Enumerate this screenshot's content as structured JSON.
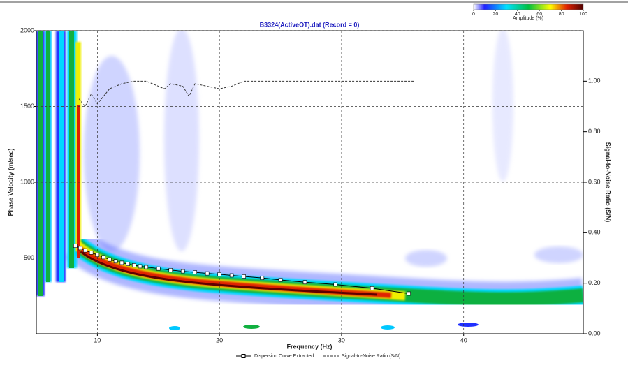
{
  "chart_data": {
    "type": "dispersion",
    "title": "B3324(ActiveOT).dat (Record = 0)",
    "x_label": "Frequency (Hz)",
    "y_label": "Phase Velocity (m/sec)",
    "y2_label": "Signal-to-Noise Ratio (S/N)",
    "xlim": [
      5,
      49.8
    ],
    "ylim": [
      0,
      2000
    ],
    "y2lim": [
      0,
      1.2
    ],
    "xticks": [
      10,
      20,
      30,
      40
    ],
    "yticks": [
      500,
      1000,
      1500,
      2000
    ],
    "y2ticks": [
      {
        "value": 0,
        "label": "0.00"
      },
      {
        "value": 0.2,
        "label": "0.20"
      },
      {
        "value": 0.4,
        "label": "0.40"
      },
      {
        "value": 0.6,
        "label": "0.60"
      },
      {
        "value": 0.8,
        "label": "0.80"
      },
      {
        "value": 1.0,
        "label": "1.00"
      }
    ],
    "grid": true,
    "colorbar": {
      "label": "Amplitude (%)",
      "ticks": [
        0,
        20,
        40,
        60,
        80,
        100
      ]
    },
    "series": [
      {
        "name": "Dispersion Curve Extracted",
        "color": "#000000",
        "x": [
          8.2,
          8.6,
          9,
          9.5,
          10,
          10.5,
          11,
          11.5,
          12,
          12.5,
          13,
          13.5,
          14,
          15,
          16,
          17,
          18,
          19,
          20,
          21,
          22,
          23.5,
          25,
          27,
          29.5,
          32.5,
          35.5
        ],
        "values": [
          580,
          565,
          550,
          535,
          520,
          505,
          490,
          478,
          468,
          460,
          452,
          445,
          440,
          430,
          420,
          412,
          405,
          398,
          392,
          385,
          378,
          368,
          355,
          340,
          325,
          300,
          265
        ]
      },
      {
        "name": "Signal-to-Noise Ratio (S/N)",
        "color": "#333333",
        "axis": "y2",
        "x": [
          8.5,
          9,
          9.5,
          10,
          11,
          12,
          13,
          14,
          15,
          15.5,
          16,
          17,
          17.5,
          18,
          19,
          20,
          21,
          22,
          25,
          30,
          36
        ],
        "values": [
          0.93,
          0.9,
          0.95,
          0.91,
          0.97,
          0.99,
          1.0,
          1.0,
          0.98,
          0.97,
          0.99,
          0.98,
          0.94,
          0.99,
          0.98,
          0.97,
          0.98,
          1.0,
          1.0,
          1.0,
          1.0
        ]
      }
    ]
  }
}
